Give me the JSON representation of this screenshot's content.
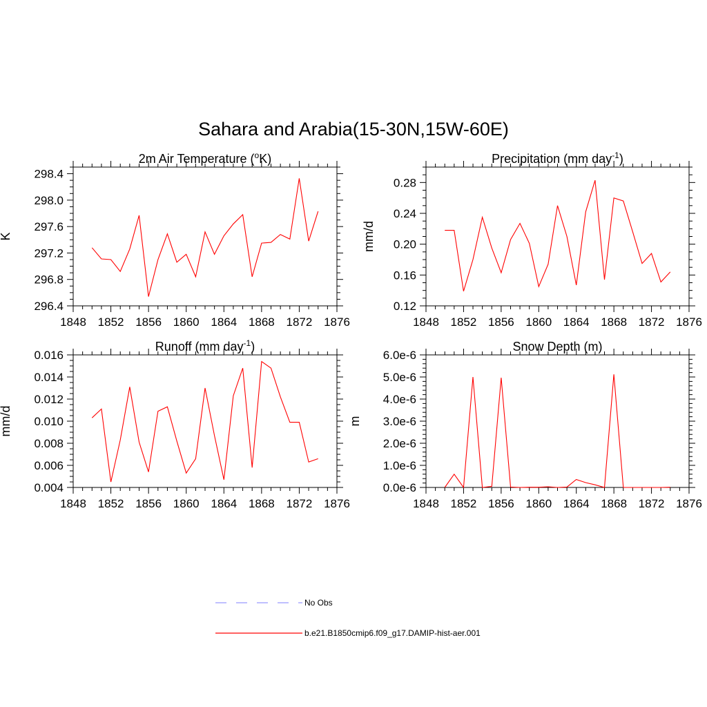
{
  "figure": {
    "title": "Sahara and Arabia(15-30N,15W-60E)"
  },
  "colors": {
    "model": "#ff0000",
    "obs": "#9999ff"
  },
  "legend": [
    {
      "label": "No Obs",
      "style": "dashed",
      "color": "#9999ff"
    },
    {
      "label": "b.e21.B1850cmip6.f09_g17.DAMIP-hist-aer.001",
      "style": "solid",
      "color": "#ff0000"
    }
  ],
  "chart_data": [
    {
      "type": "line",
      "title_main": "2m Air Temperature (",
      "title_sup": "o",
      "title_tail": "K)",
      "ylabel": "K",
      "xlim": [
        1848,
        1876
      ],
      "ylim": [
        296.4,
        298.5
      ],
      "xticks": [
        "1848",
        "1852",
        "1856",
        "1860",
        "1864",
        "1868",
        "1872",
        "1876"
      ],
      "yticks": [
        "296.4",
        "296.8",
        "297.2",
        "297.6",
        "298.0",
        "298.4"
      ],
      "x": [
        1850,
        1851,
        1852,
        1853,
        1854,
        1855,
        1856,
        1857,
        1858,
        1859,
        1860,
        1861,
        1862,
        1863,
        1864,
        1865,
        1866,
        1867,
        1868,
        1869,
        1870,
        1871,
        1872,
        1873,
        1874
      ],
      "series": [
        {
          "values": [
            297.28,
            297.11,
            297.1,
            296.92,
            297.26,
            297.77,
            296.54,
            297.1,
            297.49,
            297.06,
            297.18,
            296.84,
            297.52,
            297.18,
            297.46,
            297.64,
            297.78,
            296.84,
            297.35,
            297.36,
            297.48,
            297.41,
            298.33,
            297.38,
            297.83
          ]
        }
      ]
    },
    {
      "type": "line",
      "title_main": "Precipitation (mm day",
      "title_sup": "-1",
      "title_tail": ")",
      "ylabel": "mm/d",
      "xlim": [
        1848,
        1876
      ],
      "ylim": [
        0.12,
        0.3
      ],
      "xticks": [
        "1848",
        "1852",
        "1856",
        "1860",
        "1864",
        "1868",
        "1872",
        "1876"
      ],
      "yticks": [
        "0.12",
        "0.16",
        "0.20",
        "0.24",
        "0.28"
      ],
      "x": [
        1850,
        1851,
        1852,
        1853,
        1854,
        1855,
        1856,
        1857,
        1858,
        1859,
        1860,
        1861,
        1862,
        1863,
        1864,
        1865,
        1866,
        1867,
        1868,
        1869,
        1870,
        1871,
        1872,
        1873,
        1874
      ],
      "series": [
        {
          "values": [
            0.218,
            0.218,
            0.139,
            0.18,
            0.235,
            0.195,
            0.163,
            0.206,
            0.227,
            0.201,
            0.145,
            0.174,
            0.25,
            0.21,
            0.147,
            0.242,
            0.283,
            0.154,
            0.26,
            0.256,
            0.216,
            0.175,
            0.188,
            0.151,
            0.164
          ]
        }
      ]
    },
    {
      "type": "line",
      "title_main": "Runoff (mm day",
      "title_sup": "-1",
      "title_tail": ")",
      "ylabel": "mm/d",
      "xlim": [
        1848,
        1876
      ],
      "ylim": [
        0.004,
        0.016
      ],
      "xticks": [
        "1848",
        "1852",
        "1856",
        "1860",
        "1864",
        "1868",
        "1872",
        "1876"
      ],
      "yticks": [
        "0.004",
        "0.006",
        "0.008",
        "0.010",
        "0.012",
        "0.014",
        "0.016"
      ],
      "x": [
        1850,
        1851,
        1852,
        1853,
        1854,
        1855,
        1856,
        1857,
        1858,
        1859,
        1860,
        1861,
        1862,
        1863,
        1864,
        1865,
        1866,
        1867,
        1868,
        1869,
        1870,
        1871,
        1872,
        1873,
        1874
      ],
      "series": [
        {
          "values": [
            0.0103,
            0.0111,
            0.0045,
            0.0083,
            0.0131,
            0.0081,
            0.0054,
            0.0109,
            0.0113,
            0.0082,
            0.0053,
            0.0066,
            0.013,
            0.0087,
            0.0047,
            0.0123,
            0.0148,
            0.0058,
            0.0154,
            0.0148,
            0.0122,
            0.0099,
            0.0099,
            0.0063,
            0.0066
          ]
        }
      ]
    },
    {
      "type": "line",
      "title_main": "Snow Depth (m)",
      "title_sup": "",
      "title_tail": "",
      "ylabel": "m",
      "xlim": [
        1848,
        1876
      ],
      "ylim": [
        0,
        6e-06
      ],
      "xticks": [
        "1848",
        "1852",
        "1856",
        "1860",
        "1864",
        "1868",
        "1872",
        "1876"
      ],
      "yticks": [
        "0.0e-6",
        "1.0e-6",
        "2.0e-6",
        "3.0e-6",
        "4.0e-6",
        "5.0e-6",
        "6.0e-6"
      ],
      "x": [
        1850,
        1851,
        1852,
        1853,
        1854,
        1855,
        1856,
        1857,
        1858,
        1859,
        1860,
        1861,
        1862,
        1863,
        1864,
        1865,
        1866,
        1867,
        1868,
        1869,
        1870,
        1871,
        1872,
        1873,
        1874
      ],
      "series": [
        {
          "values": [
            0,
            6e-07,
            0,
            5e-06,
            0,
            5e-08,
            4.97e-06,
            2e-08,
            0,
            1e-08,
            1e-08,
            3e-08,
            0,
            2e-08,
            3.6e-07,
            2.2e-07,
            1.2e-07,
            0,
            5.12e-06,
            0,
            0,
            0,
            0,
            0,
            1e-08
          ]
        }
      ]
    }
  ]
}
